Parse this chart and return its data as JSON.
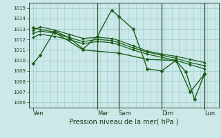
{
  "title": "Pression niveau de la mer( hPa )",
  "bg_color": "#cce8e8",
  "grid_color": "#99cccc",
  "line_color": "#1a5c1a",
  "marker_color": "#1a5c1a",
  "ylim": [
    1005.5,
    1015.5
  ],
  "yticks": [
    1006,
    1007,
    1008,
    1009,
    1010,
    1011,
    1012,
    1013,
    1014,
    1015
  ],
  "x_day_labels": [
    "Ven",
    "Mar",
    "Sam",
    "Dim",
    "Lun"
  ],
  "x_day_positions": [
    0.0,
    4.5,
    6.0,
    9.0,
    12.0
  ],
  "xlim": [
    -0.3,
    13.0
  ],
  "series": [
    {
      "x": [
        0,
        0.5,
        1.5,
        2.5,
        3.5,
        4.5,
        5.5,
        6.0,
        7.0,
        8.0,
        9.0,
        10.0,
        11.0,
        12.0
      ],
      "y": [
        1009.7,
        1010.5,
        1012.8,
        1012.2,
        1011.1,
        1012.3,
        1014.8,
        1014.2,
        1013.0,
        1009.2,
        1009.0,
        1010.0,
        1007.0,
        1008.7
      ],
      "lw": 1.0,
      "marker": "D",
      "ms": 2.5
    },
    {
      "x": [
        0,
        0.5,
        1.5,
        2.5,
        3.5,
        4.5,
        5.5,
        6.0,
        7.0,
        8.0,
        9.0,
        10.0,
        11.0,
        12.0
      ],
      "y": [
        1012.9,
        1013.2,
        1012.9,
        1012.5,
        1012.1,
        1012.2,
        1012.1,
        1011.9,
        1011.4,
        1010.9,
        1010.6,
        1010.4,
        1010.1,
        1009.8
      ],
      "lw": 0.9,
      "marker": "D",
      "ms": 1.8
    },
    {
      "x": [
        0,
        0.5,
        1.5,
        2.5,
        3.5,
        4.5,
        5.5,
        6.0,
        7.0,
        8.0,
        9.0,
        10.0,
        11.0,
        12.0
      ],
      "y": [
        1012.6,
        1012.8,
        1012.6,
        1012.2,
        1011.8,
        1012.0,
        1011.9,
        1011.7,
        1011.2,
        1010.8,
        1010.5,
        1010.2,
        1009.8,
        1009.5
      ],
      "lw": 0.9,
      "marker": "D",
      "ms": 1.8
    },
    {
      "x": [
        0,
        0.5,
        1.5,
        2.5,
        3.5,
        4.5,
        5.5,
        6.0,
        7.0,
        8.0,
        9.0,
        10.0,
        11.0,
        12.0
      ],
      "y": [
        1012.2,
        1012.5,
        1012.3,
        1012.0,
        1011.6,
        1011.8,
        1011.7,
        1011.5,
        1011.0,
        1010.6,
        1010.3,
        1010.0,
        1009.6,
        1009.2
      ],
      "lw": 0.9,
      "marker": "D",
      "ms": 1.8
    },
    {
      "x": [
        0,
        1.5,
        3.5,
        6.0,
        8.0,
        10.0,
        10.7,
        11.3,
        12.0
      ],
      "y": [
        1013.1,
        1012.7,
        1011.0,
        1010.7,
        1010.1,
        1010.0,
        1008.9,
        1006.3,
        1008.7
      ],
      "lw": 1.0,
      "marker": "D",
      "ms": 2.5
    }
  ],
  "vlines_x": [
    4.5,
    6.0,
    9.0,
    12.0
  ],
  "vline_color": "#2a4a2a",
  "title_fontsize": 7,
  "tick_fontsize": 5,
  "xlabel_fontsize": 6
}
